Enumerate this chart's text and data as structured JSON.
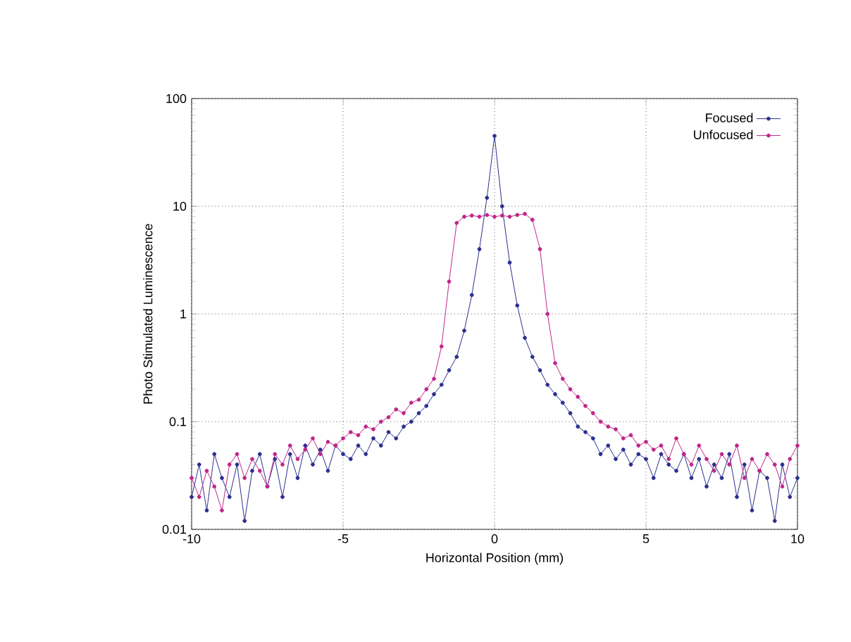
{
  "chart_data": {
    "type": "line",
    "xlabel": "Horizontal Position (mm)",
    "ylabel": "Photo Stimulated Luminescence",
    "log": "y",
    "grid": true,
    "legend": "top right",
    "marker": "circle",
    "line_style": "solid",
    "x": [
      -10,
      -9.75,
      -9.5,
      -9.25,
      -9,
      -8.75,
      -8.5,
      -8.25,
      -8,
      -7.75,
      -7.5,
      -7.25,
      -7,
      -6.75,
      -6.5,
      -6.25,
      -6,
      -5.75,
      -5.5,
      -5.25,
      -5,
      -4.75,
      -4.5,
      -4.25,
      -4,
      -3.75,
      -3.5,
      -3.25,
      -3,
      -2.75,
      -2.5,
      -2.25,
      -2,
      -1.75,
      -1.5,
      -1.25,
      -1,
      -0.75,
      -0.5,
      -0.25,
      0,
      0.25,
      0.5,
      0.75,
      1,
      1.25,
      1.5,
      1.75,
      2,
      2.25,
      2.5,
      2.75,
      3,
      3.25,
      3.5,
      3.75,
      4,
      4.25,
      4.5,
      4.75,
      5,
      5.25,
      5.5,
      5.75,
      6,
      6.25,
      6.5,
      6.75,
      7,
      7.25,
      7.5,
      7.75,
      8,
      8.25,
      8.5,
      8.75,
      9,
      9.25,
      9.5,
      9.75,
      10
    ],
    "series": [
      {
        "name": "Focused",
        "color": "#2b2f8f",
        "values": [
          0.02,
          0.04,
          0.015,
          0.05,
          0.03,
          0.02,
          0.04,
          0.012,
          0.035,
          0.05,
          0.025,
          0.045,
          0.02,
          0.05,
          0.03,
          0.06,
          0.04,
          0.055,
          0.035,
          0.06,
          0.05,
          0.045,
          0.06,
          0.05,
          0.07,
          0.06,
          0.08,
          0.07,
          0.09,
          0.1,
          0.12,
          0.14,
          0.18,
          0.22,
          0.3,
          0.4,
          0.7,
          1.5,
          4,
          12,
          45,
          10,
          3,
          1.2,
          0.6,
          0.4,
          0.3,
          0.22,
          0.18,
          0.15,
          0.12,
          0.09,
          0.08,
          0.07,
          0.05,
          0.06,
          0.045,
          0.055,
          0.04,
          0.05,
          0.045,
          0.03,
          0.05,
          0.04,
          0.035,
          0.05,
          0.03,
          0.045,
          0.025,
          0.04,
          0.03,
          0.05,
          0.02,
          0.04,
          0.015,
          0.035,
          0.03,
          0.012,
          0.04,
          0.02,
          0.03
        ]
      },
      {
        "name": "Unfocused",
        "color": "#c0258a",
        "values": [
          0.03,
          0.02,
          0.035,
          0.025,
          0.015,
          0.04,
          0.05,
          0.03,
          0.045,
          0.035,
          0.025,
          0.05,
          0.04,
          0.06,
          0.045,
          0.055,
          0.07,
          0.05,
          0.065,
          0.06,
          0.07,
          0.08,
          0.075,
          0.09,
          0.085,
          0.1,
          0.11,
          0.13,
          0.12,
          0.15,
          0.16,
          0.2,
          0.25,
          0.5,
          2,
          7,
          8,
          8.2,
          8,
          8.3,
          8,
          8.2,
          8,
          8.3,
          8.5,
          7.5,
          4,
          1,
          0.35,
          0.25,
          0.2,
          0.17,
          0.14,
          0.12,
          0.1,
          0.09,
          0.085,
          0.07,
          0.075,
          0.06,
          0.065,
          0.055,
          0.06,
          0.045,
          0.07,
          0.05,
          0.04,
          0.06,
          0.045,
          0.035,
          0.05,
          0.04,
          0.06,
          0.03,
          0.045,
          0.035,
          0.05,
          0.04,
          0.025,
          0.045,
          0.06
        ]
      }
    ],
    "xlim": [
      -10,
      10
    ],
    "ylim": [
      0.01,
      100
    ],
    "xticks": [
      -10,
      -5,
      0,
      5,
      10
    ],
    "yticks": [
      0.01,
      0.1,
      1,
      10,
      100
    ]
  }
}
